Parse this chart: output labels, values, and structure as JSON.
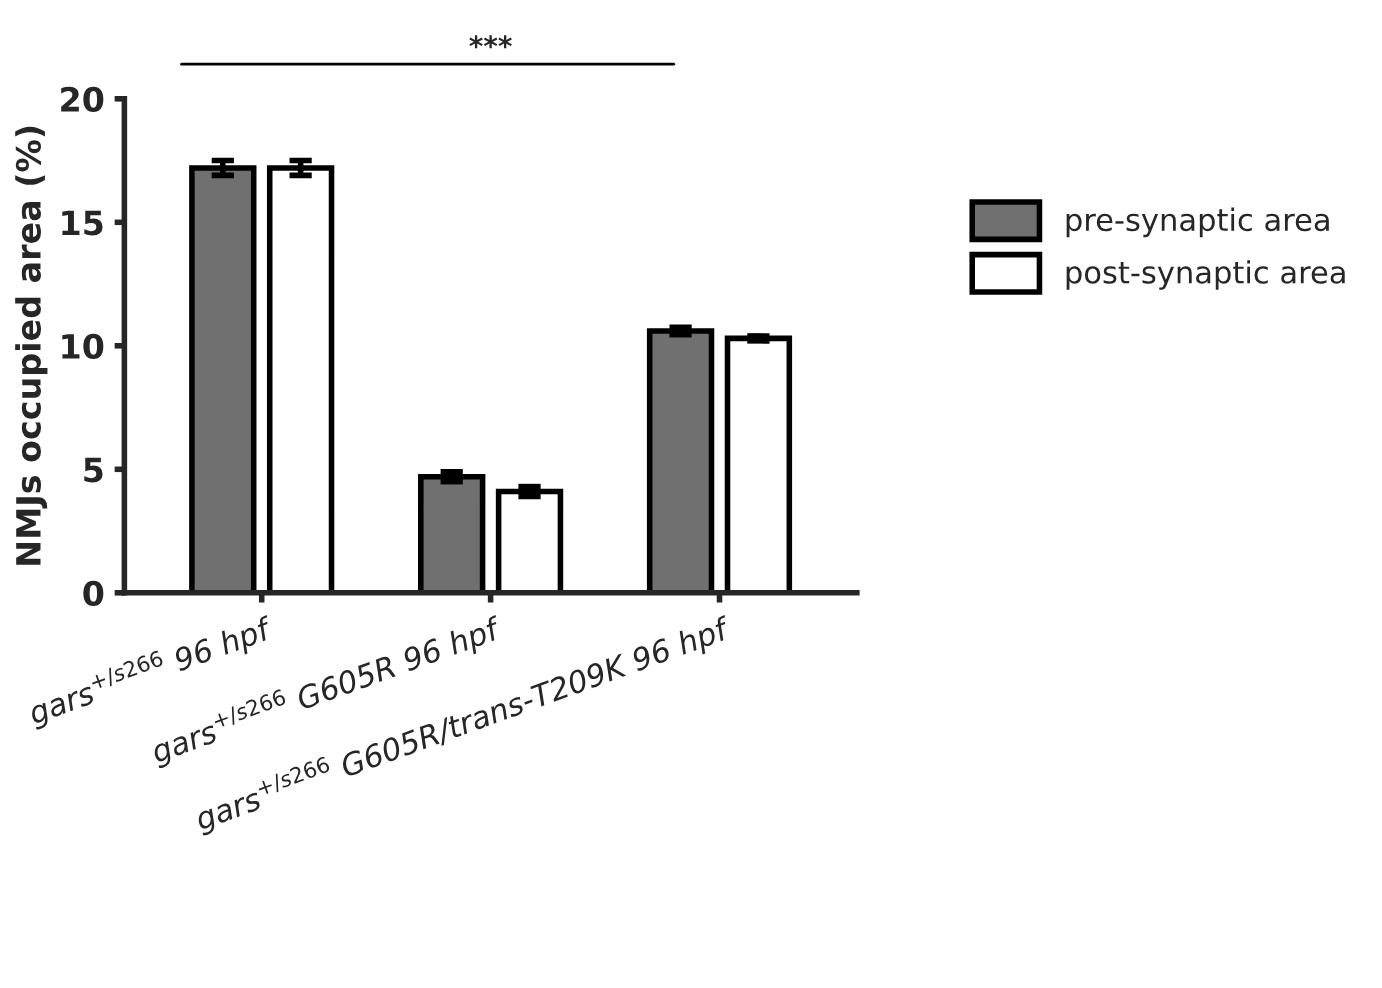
{
  "chart_data": {
    "type": "bar",
    "ylabel": "NMJs occupied area (%)",
    "categories": [
      "gars$^{+/s266}$ 96 hpf",
      "gars$^{+/s266}$ G605R 96 hpf",
      "gars$^{+/s266}$ G605R/trans-T209K 96 hpf"
    ],
    "series": [
      {
        "name": "pre-synaptic area",
        "color": "#707070",
        "values": [
          17.2,
          4.7,
          10.6
        ],
        "errors": [
          0.3,
          0.2,
          0.15
        ]
      },
      {
        "name": "post-synaptic area",
        "color": "#ffffff",
        "values": [
          17.2,
          4.1,
          10.3
        ],
        "errors": [
          0.3,
          0.2,
          0.1
        ]
      }
    ],
    "ylim": [
      0,
      20
    ],
    "yticks": [
      0,
      5,
      10,
      15,
      20
    ],
    "grid": false,
    "legend": "right",
    "annotations": [
      "***"
    ]
  }
}
